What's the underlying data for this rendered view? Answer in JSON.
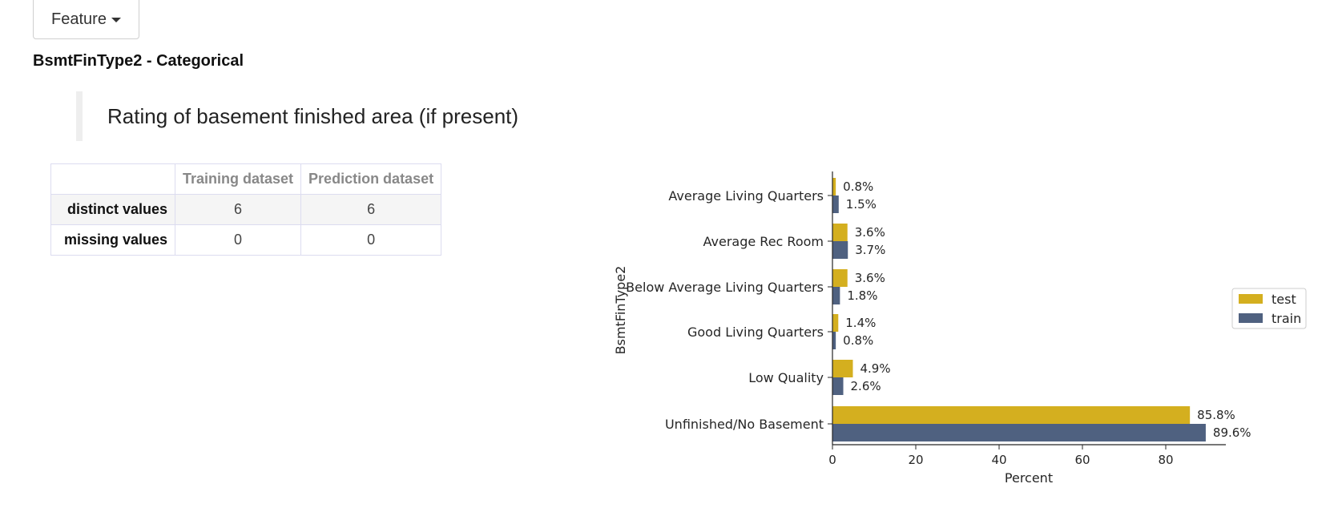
{
  "toolbar": {
    "dropdown_label": "Feature"
  },
  "feature": {
    "title": "BsmtFinType2 - Categorical",
    "description": "Rating of basement finished area (if present)"
  },
  "table": {
    "headers": [
      "",
      "Training dataset",
      "Prediction dataset"
    ],
    "rows": [
      {
        "label": "distinct values",
        "train": "6",
        "pred": "6"
      },
      {
        "label": "missing values",
        "train": "0",
        "pred": "0"
      }
    ]
  },
  "chart_data": {
    "type": "bar",
    "orientation": "horizontal",
    "categories": [
      "Average Living Quarters",
      "Average Rec Room",
      "Below Average Living Quarters",
      "Good Living Quarters",
      "Low Quality",
      "Unfinished/No Basement"
    ],
    "series": [
      {
        "name": "test",
        "color": "#d4af1f",
        "values": [
          0.8,
          3.6,
          3.6,
          1.4,
          4.9,
          85.8
        ],
        "labels": [
          "0.8%",
          "3.6%",
          "3.6%",
          "1.4%",
          "4.9%",
          "85.8%"
        ]
      },
      {
        "name": "train",
        "color": "#4f6180",
        "values": [
          1.5,
          3.7,
          1.8,
          0.8,
          2.6,
          89.6
        ],
        "labels": [
          "1.5%",
          "3.7%",
          "1.8%",
          "0.8%",
          "2.6%",
          "89.6%"
        ]
      }
    ],
    "xlabel": "Percent",
    "ylabel": "BsmtFinType2",
    "xticks": [
      "0",
      "20",
      "40",
      "60",
      "80"
    ],
    "xlim": [
      0,
      94
    ],
    "legend": "center-right",
    "grid": false
  }
}
